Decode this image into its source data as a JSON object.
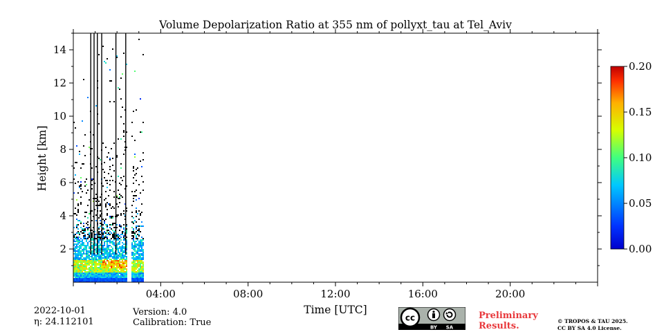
{
  "chart_data": {
    "type": "heatmap",
    "title": "Volume Depolarization Ratio at 355 nm of pollyxt_tau at Tel_Aviv",
    "xlabel": "Time [UTC]",
    "ylabel": "Height [km]",
    "x_range_hours": [
      0,
      24
    ],
    "y_range_km": [
      0,
      15
    ],
    "x_ticks": [
      {
        "hour": 4,
        "label": "04:00"
      },
      {
        "hour": 8,
        "label": "08:00"
      },
      {
        "hour": 12,
        "label": "12:00"
      },
      {
        "hour": 16,
        "label": "16:00"
      },
      {
        "hour": 20,
        "label": "20:00"
      }
    ],
    "y_ticks": [
      {
        "km": 2,
        "label": "2"
      },
      {
        "km": 4,
        "label": "4"
      },
      {
        "km": 6,
        "label": "6"
      },
      {
        "km": 8,
        "label": "8"
      },
      {
        "km": 10,
        "label": "10"
      },
      {
        "km": 12,
        "label": "12"
      },
      {
        "km": 14,
        "label": "14"
      }
    ],
    "colorbar": {
      "range": [
        0.0,
        0.2
      ],
      "ticks": [
        {
          "value": 0.0,
          "label": "0.00"
        },
        {
          "value": 0.05,
          "label": "0.05"
        },
        {
          "value": 0.1,
          "label": "0.10"
        },
        {
          "value": 0.15,
          "label": "0.15"
        },
        {
          "value": 0.2,
          "label": "0.20"
        }
      ],
      "colormap": "jet"
    },
    "data_coverage_hours": [
      0.0,
      3.2
    ],
    "data_gaps_hours": [
      [
        2.45,
        2.65
      ]
    ],
    "vertical_profile_lines_hours": [
      0.8,
      0.95,
      1.1,
      1.3,
      1.95,
      2.4
    ]
  },
  "footer": {
    "date": "2022-10-01",
    "eta": "24.112101",
    "eta_label": "η: ",
    "version": "Version: 4.0",
    "calibration": "Calibration: True",
    "cc_by": "BY",
    "cc_sa": "SA",
    "preliminary_line1": "Preliminary",
    "preliminary_line2": "Results.",
    "copyright_line1": "© TROPOS & TAU 2025.",
    "copyright_line2": "CC BY SA 4.0 License."
  },
  "colors": {
    "preliminary": "#e8383b",
    "badge_bg": "#aab2ab",
    "badge_dark": "#000000"
  }
}
